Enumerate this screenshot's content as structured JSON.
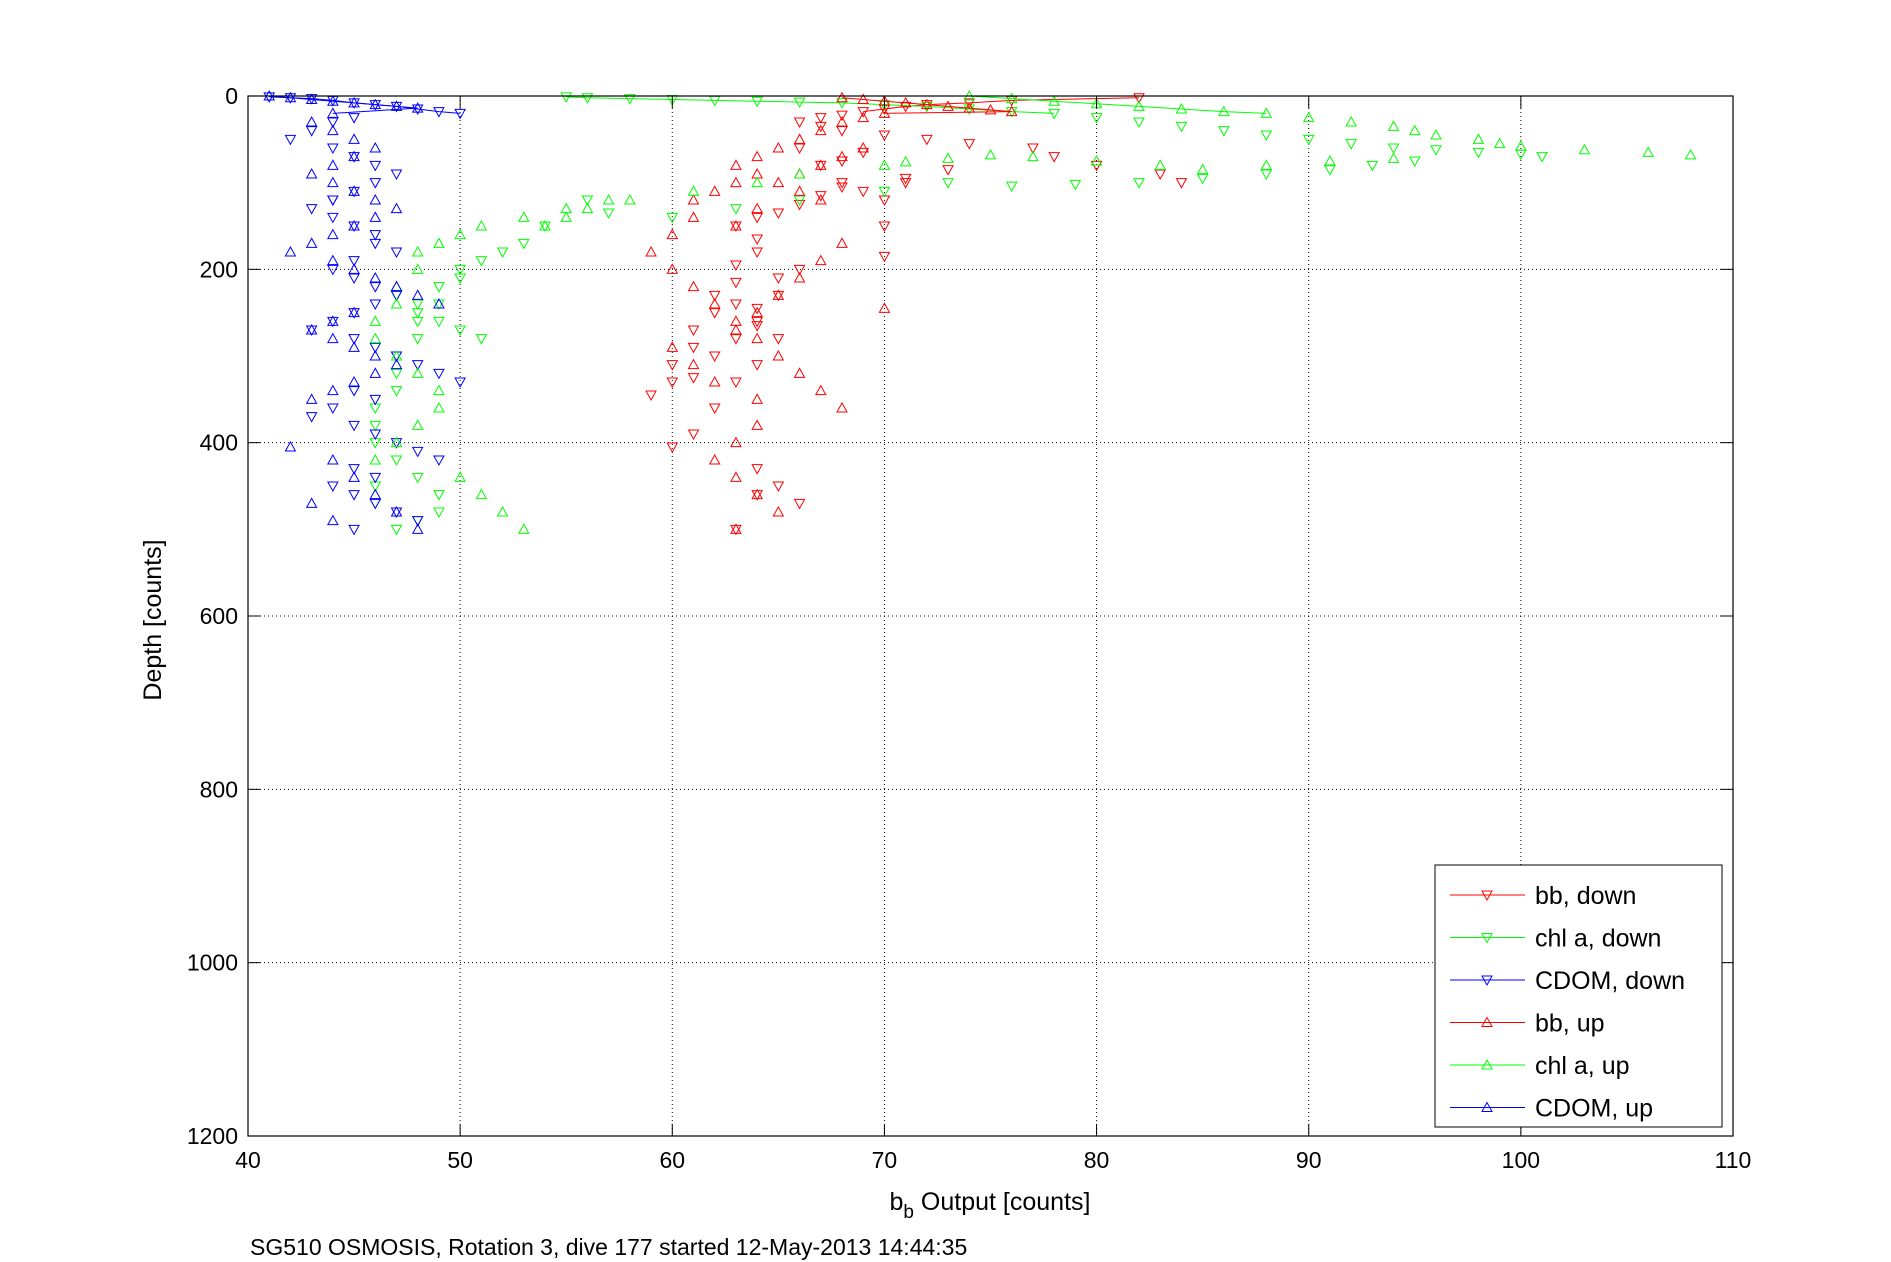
{
  "chart_data": {
    "type": "scatter",
    "title": "",
    "xlabel": "b",
    "xlabel_subscript": "b",
    "xlabel_suffix": " Output [counts]",
    "ylabel": "Depth [counts]",
    "caption": "SG510 OSMOSIS, Rotation 3, dive 177 started 12-May-2013 14:44:35",
    "xlim": [
      40,
      110
    ],
    "ylim": [
      0,
      1200
    ],
    "y_reversed": true,
    "grid": true,
    "grid_style": "dotted",
    "xticks": [
      40,
      50,
      60,
      70,
      80,
      90,
      100,
      110
    ],
    "yticks": [
      0,
      200,
      400,
      600,
      800,
      1000,
      1200
    ],
    "legend_position": "bottom-right",
    "colors": {
      "red": "#ff0000",
      "green": "#00ff00",
      "blue": "#0000ff"
    },
    "series": [
      {
        "name": "bb, down",
        "color": "#ff0000",
        "marker": "triangle-down",
        "connected_near_surface": true,
        "x": [
          82,
          76,
          74,
          72,
          71,
          70,
          69,
          68,
          67,
          66,
          67,
          68,
          70,
          72,
          74,
          77,
          78,
          80,
          83,
          84,
          69,
          70,
          71,
          73,
          68,
          67,
          66,
          65,
          64,
          63,
          64,
          64,
          63,
          63,
          62,
          62,
          61,
          61,
          60,
          60,
          59,
          61,
          62,
          63,
          64,
          64,
          65,
          65,
          66,
          63,
          64,
          65,
          64,
          63,
          62,
          61,
          60,
          64,
          65,
          66,
          64,
          63,
          70,
          70,
          68,
          69,
          71,
          66,
          67,
          68
        ],
        "y": [
          2,
          5,
          8,
          10,
          12,
          15,
          18,
          22,
          25,
          30,
          35,
          40,
          45,
          50,
          55,
          60,
          70,
          80,
          90,
          100,
          110,
          120,
          100,
          85,
          105,
          115,
          125,
          135,
          140,
          150,
          165,
          180,
          195,
          215,
          230,
          250,
          270,
          290,
          310,
          330,
          345,
          325,
          300,
          280,
          265,
          245,
          230,
          210,
          200,
          240,
          260,
          280,
          310,
          330,
          360,
          390,
          405,
          430,
          450,
          470,
          460,
          500,
          150,
          185,
          75,
          65,
          95,
          60,
          80,
          100
        ]
      },
      {
        "name": "chl a, down",
        "color": "#00ff00",
        "marker": "triangle-down",
        "connected_near_surface": true,
        "x": [
          55,
          56,
          58,
          60,
          62,
          64,
          66,
          68,
          70,
          72,
          74,
          76,
          78,
          80,
          82,
          84,
          86,
          88,
          90,
          92,
          94,
          96,
          98,
          100,
          101,
          95,
          93,
          91,
          88,
          85,
          82,
          79,
          76,
          73,
          70,
          66,
          63,
          60,
          57,
          56,
          54,
          53,
          52,
          51,
          50,
          50,
          49,
          49,
          48,
          48,
          47,
          47,
          47,
          46,
          46,
          46,
          47,
          48,
          49,
          49,
          48,
          47,
          46,
          46,
          48,
          47,
          48,
          49,
          50,
          51
        ],
        "y": [
          1,
          2,
          3,
          4,
          5,
          6,
          7,
          8,
          10,
          12,
          15,
          18,
          20,
          25,
          30,
          35,
          40,
          45,
          50,
          55,
          60,
          62,
          65,
          67,
          70,
          75,
          80,
          85,
          90,
          95,
          100,
          102,
          104,
          100,
          110,
          120,
          130,
          140,
          135,
          120,
          150,
          170,
          180,
          190,
          200,
          210,
          220,
          240,
          260,
          280,
          300,
          320,
          340,
          360,
          380,
          400,
          420,
          440,
          460,
          480,
          490,
          500,
          470,
          450,
          240,
          230,
          250,
          260,
          270,
          280
        ]
      },
      {
        "name": "CDOM, down",
        "color": "#0000ff",
        "marker": "triangle-down",
        "connected_near_surface": true,
        "x": [
          41,
          42,
          43,
          44,
          45,
          46,
          47,
          48,
          49,
          50,
          45,
          44,
          43,
          42,
          44,
          45,
          46,
          47,
          46,
          45,
          44,
          43,
          44,
          45,
          46,
          46,
          47,
          45,
          44,
          45,
          46,
          47,
          46,
          45,
          44,
          43,
          45,
          46,
          47,
          48,
          49,
          50,
          45,
          46,
          44,
          43,
          45,
          46,
          47,
          48,
          49,
          45,
          46,
          44,
          45,
          46,
          47,
          48,
          45,
          44
        ],
        "y": [
          1,
          2,
          3,
          5,
          8,
          10,
          12,
          15,
          18,
          20,
          25,
          30,
          40,
          50,
          60,
          70,
          80,
          90,
          100,
          110,
          120,
          130,
          140,
          150,
          160,
          170,
          180,
          190,
          200,
          210,
          220,
          230,
          240,
          250,
          260,
          270,
          280,
          290,
          300,
          310,
          320,
          330,
          340,
          350,
          360,
          370,
          380,
          390,
          400,
          410,
          420,
          430,
          440,
          450,
          460,
          470,
          480,
          490,
          500,
          120
        ]
      },
      {
        "name": "bb, up",
        "color": "#ff0000",
        "marker": "triangle-up",
        "connected_near_surface": true,
        "x": [
          68,
          69,
          70,
          71,
          72,
          73,
          74,
          75,
          76,
          70,
          69,
          68,
          67,
          66,
          65,
          64,
          63,
          64,
          63,
          62,
          61,
          61,
          60,
          59,
          60,
          61,
          62,
          63,
          64,
          65,
          66,
          67,
          68,
          64,
          63,
          62,
          63,
          64,
          65,
          63,
          64,
          62,
          61,
          60,
          63,
          64,
          65,
          66,
          67,
          68,
          63,
          64,
          70,
          69,
          68,
          67,
          66,
          65,
          66,
          67
        ],
        "y": [
          2,
          4,
          6,
          8,
          10,
          12,
          14,
          16,
          18,
          20,
          25,
          30,
          40,
          50,
          60,
          70,
          80,
          90,
          100,
          110,
          120,
          140,
          160,
          180,
          200,
          220,
          240,
          260,
          280,
          300,
          320,
          340,
          360,
          380,
          400,
          420,
          440,
          460,
          480,
          500,
          350,
          330,
          310,
          290,
          270,
          250,
          230,
          210,
          190,
          170,
          150,
          130,
          245,
          60,
          70,
          80,
          90,
          100,
          110,
          120
        ]
      },
      {
        "name": "chl a, up",
        "color": "#00ff00",
        "marker": "triangle-up",
        "connected_near_surface": true,
        "x": [
          74,
          76,
          78,
          80,
          82,
          84,
          86,
          88,
          90,
          92,
          94,
          95,
          96,
          98,
          99,
          100,
          103,
          106,
          108,
          94,
          91,
          88,
          85,
          83,
          80,
          77,
          75,
          73,
          71,
          70,
          66,
          64,
          61,
          58,
          55,
          53,
          51,
          50,
          49,
          48,
          48,
          47,
          47,
          46,
          46,
          47,
          48,
          49,
          49,
          48,
          47,
          46,
          50,
          51,
          52,
          53,
          54,
          55,
          56,
          57
        ],
        "y": [
          0,
          3,
          6,
          9,
          12,
          15,
          18,
          20,
          25,
          30,
          35,
          40,
          45,
          50,
          55,
          58,
          62,
          65,
          68,
          72,
          75,
          80,
          85,
          80,
          75,
          70,
          68,
          72,
          76,
          80,
          90,
          100,
          110,
          120,
          130,
          140,
          150,
          160,
          170,
          180,
          200,
          220,
          240,
          260,
          280,
          300,
          320,
          340,
          360,
          380,
          400,
          420,
          440,
          460,
          480,
          500,
          150,
          140,
          130,
          120
        ]
      },
      {
        "name": "CDOM, up",
        "color": "#0000ff",
        "marker": "triangle-up",
        "connected_near_surface": true,
        "x": [
          41,
          42,
          43,
          44,
          45,
          46,
          47,
          48,
          44,
          43,
          44,
          45,
          46,
          45,
          44,
          43,
          44,
          45,
          46,
          47,
          46,
          45,
          44,
          43,
          42,
          44,
          45,
          46,
          47,
          48,
          49,
          45,
          44,
          43,
          44,
          45,
          46,
          47,
          46,
          45,
          44,
          43,
          42,
          44,
          45,
          46,
          47,
          48,
          44,
          43
        ],
        "y": [
          0,
          2,
          4,
          6,
          8,
          10,
          12,
          14,
          20,
          30,
          40,
          50,
          60,
          70,
          80,
          90,
          100,
          110,
          120,
          130,
          140,
          150,
          160,
          170,
          180,
          190,
          200,
          210,
          220,
          230,
          240,
          250,
          260,
          270,
          280,
          290,
          300,
          310,
          320,
          330,
          340,
          350,
          405,
          420,
          440,
          460,
          480,
          500,
          490,
          470
        ]
      }
    ]
  }
}
